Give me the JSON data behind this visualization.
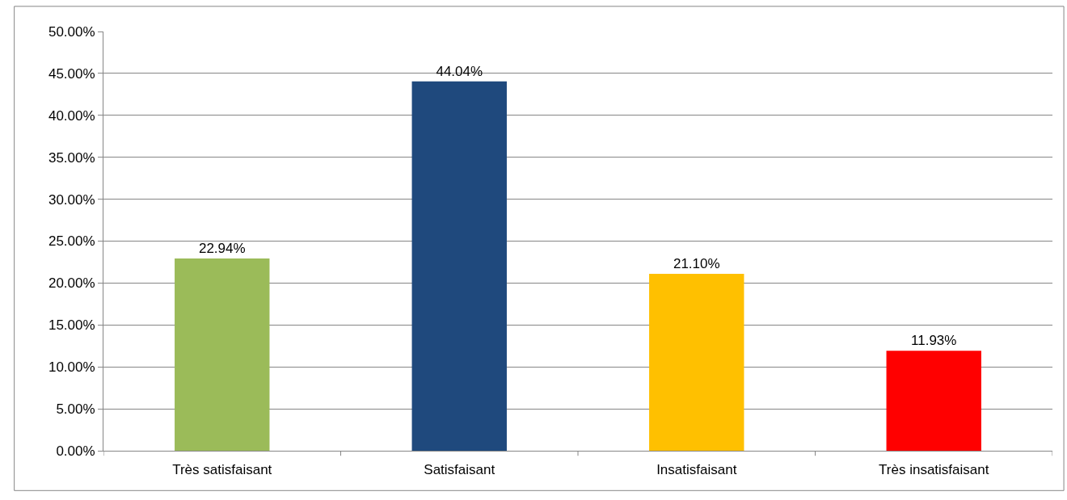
{
  "chart_data": {
    "type": "bar",
    "categories": [
      "Très satisfaisant",
      "Satisfaisant",
      "Insatisfaisant",
      "Très insatisfaisant"
    ],
    "values": [
      22.94,
      44.04,
      21.1,
      11.93
    ],
    "colors": [
      "#9bbb59",
      "#1f497d",
      "#ffc000",
      "#ff0000"
    ],
    "value_labels": [
      "22.94%",
      "44.04%",
      "21.10%",
      "11.93%"
    ],
    "ylim": [
      0,
      50
    ],
    "yticks": [
      {
        "value": 0,
        "label": "0.00%"
      },
      {
        "value": 5,
        "label": "5.00%"
      },
      {
        "value": 10,
        "label": "10.00%"
      },
      {
        "value": 15,
        "label": "15.00%"
      },
      {
        "value": 20,
        "label": "20.00%"
      },
      {
        "value": 25,
        "label": "25.00%"
      },
      {
        "value": 30,
        "label": "30.00%"
      },
      {
        "value": 35,
        "label": "35.00%"
      },
      {
        "value": 40,
        "label": "40.00%"
      },
      {
        "value": 45,
        "label": "45.00%"
      },
      {
        "value": 50,
        "label": "50.00%"
      }
    ],
    "grid": "y"
  }
}
